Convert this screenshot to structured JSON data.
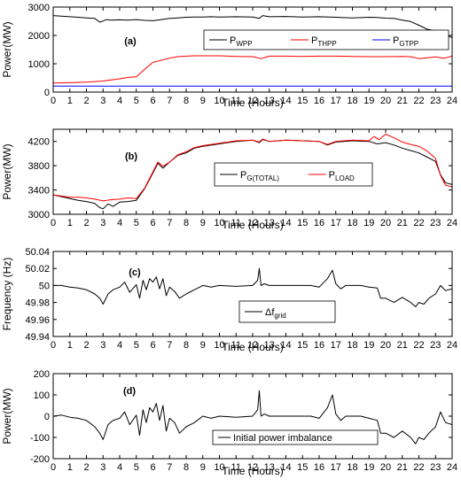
{
  "chart_data": [
    {
      "type": "line",
      "label": "(a)",
      "xlabel": "Time (Hours)",
      "ylabel": "Power(MW)",
      "xlim": [
        0,
        24
      ],
      "ylim": [
        0,
        3000
      ],
      "xticks": [
        "0",
        "1",
        "2",
        "3",
        "4",
        "5",
        "6",
        "7",
        "8",
        "9",
        "10",
        "11",
        "12",
        "13",
        "14",
        "15",
        "16",
        "17",
        "18",
        "19",
        "20",
        "21",
        "22",
        "23",
        "24"
      ],
      "yticks": [
        "0",
        "1000",
        "2000",
        "3000"
      ],
      "legend_position": "upper-right",
      "series": [
        {
          "name": "P",
          "sub": "WPP",
          "color": "#000000",
          "x": [
            0,
            0.5,
            1,
            1.5,
            2,
            2.5,
            2.8,
            3,
            3.2,
            3.5,
            4,
            4.5,
            5,
            5.5,
            6,
            6.5,
            7,
            7.5,
            8,
            8.5,
            9,
            9.5,
            10,
            11,
            12,
            12.4,
            12.6,
            13,
            14,
            15,
            16,
            17,
            18,
            19,
            19.5,
            20,
            20.5,
            21,
            21.5,
            22,
            22.5,
            23,
            23.5,
            24
          ],
          "y": [
            2700,
            2680,
            2660,
            2640,
            2620,
            2600,
            2470,
            2510,
            2560,
            2540,
            2550,
            2540,
            2560,
            2530,
            2520,
            2560,
            2600,
            2620,
            2640,
            2650,
            2650,
            2660,
            2650,
            2660,
            2650,
            2600,
            2700,
            2660,
            2670,
            2650,
            2660,
            2640,
            2620,
            2640,
            2630,
            2610,
            2600,
            2540,
            2490,
            2360,
            2220,
            2160,
            2060,
            1920
          ]
        },
        {
          "name": "P",
          "sub": "THPP",
          "color": "#ff0000",
          "x": [
            0,
            1,
            2,
            3,
            4,
            4.5,
            5,
            5.5,
            6,
            6.5,
            7,
            7.5,
            8,
            8.5,
            9,
            10,
            11,
            12,
            12.5,
            13,
            14,
            15,
            16,
            17,
            18,
            19,
            20,
            21,
            21.5,
            22,
            23,
            23.5,
            24
          ],
          "y": [
            320,
            330,
            350,
            390,
            470,
            520,
            540,
            800,
            1050,
            1120,
            1200,
            1250,
            1270,
            1280,
            1280,
            1280,
            1260,
            1250,
            1180,
            1270,
            1270,
            1260,
            1270,
            1270,
            1260,
            1250,
            1250,
            1260,
            1250,
            1180,
            1240,
            1190,
            1270
          ]
        },
        {
          "name": "P",
          "sub": "GTPP",
          "color": "#0000ff",
          "x": [
            0,
            24
          ],
          "y": [
            210,
            210
          ]
        }
      ]
    },
    {
      "type": "line",
      "label": "(b)",
      "xlabel": "Time (Hours)",
      "ylabel": "Power(MW)",
      "xlim": [
        0,
        24
      ],
      "ylim": [
        3000,
        4400
      ],
      "xticks": [
        "0",
        "1",
        "2",
        "3",
        "4",
        "5",
        "6",
        "7",
        "8",
        "9",
        "10",
        "11",
        "12",
        "13",
        "14",
        "15",
        "16",
        "17",
        "18",
        "19",
        "20",
        "21",
        "22",
        "23",
        "24"
      ],
      "yticks": [
        "3000",
        "3400",
        "3800",
        "4200"
      ],
      "legend_position": "center-right",
      "series": [
        {
          "name": "P",
          "sub": "G(TOTAL)",
          "color": "#000000",
          "x": [
            0,
            0.5,
            1,
            1.5,
            2,
            2.5,
            2.8,
            3,
            3.3,
            3.6,
            4,
            4.5,
            5,
            5.5,
            6,
            6.3,
            6.6,
            7,
            7.5,
            8,
            8.5,
            9,
            10,
            11,
            12,
            12.4,
            12.6,
            13,
            14,
            15,
            16,
            16.5,
            17,
            18,
            19,
            19.5,
            20,
            20.5,
            21,
            21.5,
            22,
            22.5,
            23,
            23.3,
            23.6,
            24
          ],
          "y": [
            3320,
            3290,
            3260,
            3230,
            3210,
            3180,
            3110,
            3090,
            3170,
            3130,
            3200,
            3210,
            3230,
            3420,
            3680,
            3840,
            3760,
            3860,
            3970,
            4010,
            4090,
            4120,
            4160,
            4200,
            4220,
            4180,
            4230,
            4200,
            4220,
            4210,
            4200,
            4140,
            4190,
            4210,
            4200,
            4160,
            4180,
            4140,
            4090,
            4050,
            4010,
            3940,
            3870,
            3650,
            3520,
            3490
          ]
        },
        {
          "name": "P",
          "sub": "LOAD",
          "color": "#ff0000",
          "x": [
            0,
            0.5,
            1,
            1.5,
            2,
            2.5,
            3,
            3.5,
            4,
            4.5,
            5,
            5.5,
            6,
            6.3,
            6.6,
            7,
            7.5,
            8,
            8.5,
            9,
            10,
            11,
            12,
            12.4,
            12.6,
            13,
            14,
            15,
            16,
            16.5,
            17,
            18,
            19,
            19.3,
            19.6,
            20,
            20.5,
            21,
            21.5,
            22,
            22.5,
            23,
            23.3,
            23.6,
            24
          ],
          "y": [
            3320,
            3300,
            3280,
            3280,
            3270,
            3250,
            3220,
            3240,
            3250,
            3270,
            3260,
            3430,
            3700,
            3860,
            3790,
            3860,
            3980,
            4030,
            4100,
            4130,
            4170,
            4210,
            4220,
            4190,
            4240,
            4200,
            4220,
            4210,
            4200,
            4150,
            4200,
            4220,
            4210,
            4280,
            4230,
            4320,
            4260,
            4190,
            4150,
            4120,
            4040,
            3920,
            3640,
            3480,
            3450
          ]
        }
      ]
    },
    {
      "type": "line",
      "label": "(c)",
      "xlabel": "Time (Hours)",
      "ylabel": "Frequency (Hz)",
      "xlim": [
        0,
        24
      ],
      "ylim": [
        49.94,
        50.04
      ],
      "xticks": [
        "0",
        "1",
        "2",
        "3",
        "4",
        "5",
        "6",
        "7",
        "8",
        "9",
        "10",
        "11",
        "12",
        "13",
        "14",
        "15",
        "16",
        "17",
        "18",
        "19",
        "20",
        "21",
        "22",
        "23",
        "24"
      ],
      "yticks": [
        "49.94",
        "49.96",
        "49.98",
        "50",
        "50.02",
        "50.04"
      ],
      "legend_position": "bottom-center",
      "series": [
        {
          "name": "Δf",
          "sub": "grid",
          "color": "#000000",
          "x": [
            0,
            0.5,
            1,
            1.5,
            2,
            2.5,
            2.8,
            3,
            3.3,
            3.6,
            4,
            4.3,
            4.6,
            5,
            5.2,
            5.4,
            5.6,
            5.8,
            6,
            6.2,
            6.4,
            6.6,
            6.8,
            7,
            7.3,
            7.6,
            8,
            8.5,
            9,
            9.5,
            10,
            11,
            12,
            12.3,
            12.4,
            12.5,
            12.7,
            13,
            14,
            15,
            15.5,
            16,
            16.5,
            16.8,
            17,
            17.3,
            17.6,
            18,
            18.5,
            19,
            19.5,
            19.7,
            20,
            20.5,
            21,
            21.5,
            21.8,
            22,
            22.3,
            22.6,
            23,
            23.3,
            23.6,
            24
          ],
          "y": [
            50.0,
            50.0,
            49.998,
            49.997,
            49.995,
            49.99,
            49.985,
            49.978,
            49.99,
            49.995,
            49.998,
            50.004,
            49.992,
            50.001,
            49.985,
            50.006,
            49.995,
            50.008,
            50.004,
            50.01,
            49.996,
            50.008,
            49.988,
            49.998,
            49.993,
            49.985,
            49.99,
            49.995,
            50.0,
            49.998,
            50.0,
            49.999,
            50.0,
            50.006,
            50.02,
            50.0,
            50.002,
            50.0,
            50.0,
            50.0,
            50.0,
            49.998,
            50.008,
            50.018,
            50.002,
            49.996,
            50.0,
            50.0,
            50.0,
            49.998,
            49.997,
            49.985,
            49.985,
            49.98,
            49.986,
            49.98,
            49.975,
            49.98,
            49.978,
            49.985,
            49.99,
            50.0,
            49.994,
            49.996
          ]
        }
      ]
    },
    {
      "type": "line",
      "label": "(d)",
      "xlabel": "Time (Hours)",
      "ylabel": "Power(MW)",
      "xlim": [
        0,
        24
      ],
      "ylim": [
        -200,
        200
      ],
      "xticks": [
        "0",
        "1",
        "2",
        "3",
        "4",
        "5",
        "6",
        "7",
        "8",
        "9",
        "10",
        "11",
        "12",
        "13",
        "14",
        "15",
        "16",
        "17",
        "18",
        "19",
        "20",
        "21",
        "22",
        "23",
        "24"
      ],
      "yticks": [
        "-200",
        "-100",
        "0",
        "100",
        "200"
      ],
      "legend_position": "bottom-right",
      "series": [
        {
          "name": "Initial power imbalance",
          "sub": "",
          "color": "#000000",
          "x": [
            0,
            0.5,
            1,
            1.5,
            2,
            2.5,
            2.8,
            3,
            3.3,
            3.6,
            4,
            4.3,
            4.6,
            5,
            5.2,
            5.4,
            5.6,
            5.8,
            6,
            6.2,
            6.4,
            6.6,
            6.8,
            7,
            7.3,
            7.6,
            8,
            8.5,
            9,
            9.5,
            10,
            11,
            12,
            12.3,
            12.4,
            12.5,
            12.7,
            13,
            14,
            15,
            15.5,
            16,
            16.5,
            16.8,
            17,
            17.3,
            17.6,
            18,
            18.5,
            19,
            19.5,
            19.7,
            20,
            20.5,
            21,
            21.5,
            21.8,
            22,
            22.3,
            22.6,
            23,
            23.3,
            23.6,
            24
          ],
          "y": [
            0,
            5,
            -5,
            -10,
            -20,
            -50,
            -80,
            -110,
            -40,
            -20,
            -10,
            20,
            -40,
            5,
            -90,
            30,
            -30,
            40,
            20,
            60,
            -20,
            50,
            -70,
            -10,
            -30,
            -80,
            -50,
            -30,
            0,
            -10,
            0,
            -5,
            0,
            30,
            120,
            0,
            10,
            0,
            0,
            0,
            0,
            -10,
            40,
            100,
            10,
            -20,
            0,
            0,
            0,
            -10,
            -20,
            -80,
            -80,
            -100,
            -70,
            -100,
            -130,
            -100,
            -110,
            -80,
            -50,
            20,
            -30,
            -40
          ]
        }
      ]
    }
  ]
}
